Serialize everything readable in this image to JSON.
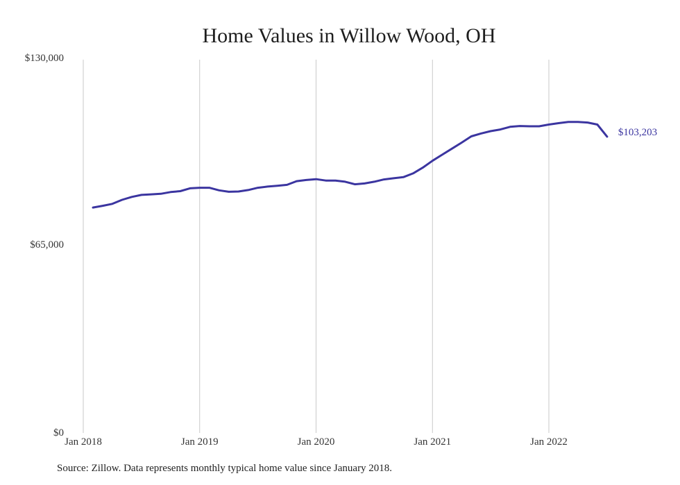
{
  "chart_data": {
    "type": "line",
    "title": "Home Values in Willow Wood, OH",
    "xlabel": "",
    "ylabel": "",
    "ylim": [
      0,
      130000
    ],
    "xlim": [
      "2018-01",
      "2022-07"
    ],
    "y_ticks": [
      "$0",
      "$65,000",
      "$130,000"
    ],
    "y_tick_values": [
      0,
      65000,
      130000
    ],
    "x_ticks": [
      "Jan 2018",
      "Jan 2019",
      "Jan 2020",
      "Jan 2021",
      "Jan 2022"
    ],
    "x_tick_values": [
      "2018-01",
      "2019-01",
      "2020-01",
      "2021-01",
      "2022-01"
    ],
    "grid": "vertical",
    "series": [
      {
        "color": "#3b35a0",
        "end_label": "$103,203",
        "x": [
          "2018-02",
          "2018-03",
          "2018-04",
          "2018-05",
          "2018-06",
          "2018-07",
          "2018-08",
          "2018-09",
          "2018-10",
          "2018-11",
          "2018-12",
          "2019-01",
          "2019-02",
          "2019-03",
          "2019-04",
          "2019-05",
          "2019-06",
          "2019-07",
          "2019-08",
          "2019-09",
          "2019-10",
          "2019-11",
          "2019-12",
          "2020-01",
          "2020-02",
          "2020-03",
          "2020-04",
          "2020-05",
          "2020-06",
          "2020-07",
          "2020-08",
          "2020-09",
          "2020-10",
          "2020-11",
          "2020-12",
          "2021-01",
          "2021-02",
          "2021-03",
          "2021-04",
          "2021-05",
          "2021-06",
          "2021-07",
          "2021-08",
          "2021-09",
          "2021-10",
          "2021-11",
          "2021-12",
          "2022-01",
          "2022-02",
          "2022-03",
          "2022-04",
          "2022-05",
          "2022-06",
          "2022-07"
        ],
        "values": [
          78500,
          79100,
          79800,
          81200,
          82200,
          82900,
          83100,
          83300,
          83900,
          84200,
          85200,
          85400,
          85400,
          84500,
          84000,
          84100,
          84600,
          85400,
          85800,
          86100,
          86400,
          87700,
          88100,
          88400,
          87900,
          87900,
          87500,
          86600,
          86900,
          87500,
          88300,
          88700,
          89100,
          90400,
          92400,
          94800,
          96900,
          99000,
          101100,
          103300,
          104300,
          105100,
          105700,
          106600,
          106900,
          106800,
          106800,
          107400,
          107900,
          108300,
          108300,
          108100,
          107400,
          103203
        ]
      }
    ]
  },
  "footer": {
    "source": "Source: Zillow. Data represents monthly typical home value since January 2018."
  }
}
